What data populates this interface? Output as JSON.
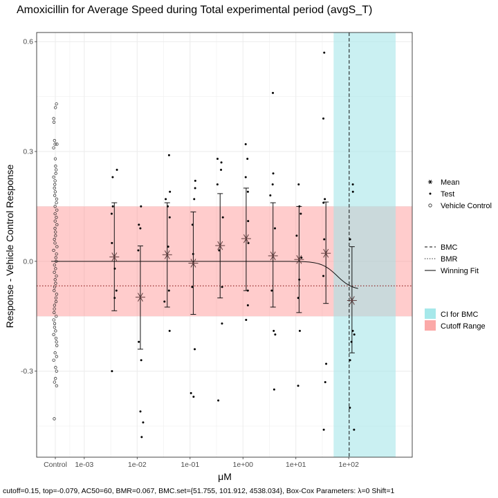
{
  "chart_data": {
    "type": "scatter",
    "title": "Amoxicillin for Average Speed during Total experimental period (avgS_T)",
    "xlabel": "μM",
    "ylabel": "Response - Vehicle Control Response",
    "caption": "cutoff=0.15, top=-0.079, AC50=60, BMR=0.067, BMC.set={51.755, 101.912, 4538.034}, Box-Cox Parameters: λ=0 Shift=1",
    "x_scale": "log10",
    "x_ticks": [
      {
        "label": "Control",
        "value": null
      },
      {
        "label": "1e-03",
        "value": 0.001
      },
      {
        "label": "1e-02",
        "value": 0.01
      },
      {
        "label": "1e-01",
        "value": 0.1
      },
      {
        "label": "1e+00",
        "value": 1
      },
      {
        "label": "1e+01",
        "value": 10
      },
      {
        "label": "1e+02",
        "value": 100
      }
    ],
    "y_ticks": [
      {
        "label": "-0.3",
        "value": -0.3
      },
      {
        "label": "0.0",
        "value": 0.0
      },
      {
        "label": "0.3",
        "value": 0.3
      },
      {
        "label": "0.6",
        "value": 0.6
      }
    ],
    "ylim": [
      -0.535,
      0.625
    ],
    "xlim_log10": [
      -3.9,
      3.2
    ],
    "grid": true,
    "cutoff_range": [
      -0.15,
      0.15
    ],
    "bmr_line": -0.067,
    "bmc": 101.912,
    "ci_for_bmc": [
      51.755,
      4538.034
    ],
    "winning_fit": {
      "form": "hill",
      "top": -0.079,
      "ac50": 60,
      "bottom": 0,
      "n": 3
    },
    "series": [
      {
        "name": "Mean",
        "points": [
          {
            "x": 0.0037,
            "y": 0.012,
            "lo": -0.135,
            "hi": 0.16
          },
          {
            "x": 0.0115,
            "y": -0.098,
            "lo": -0.24,
            "hi": 0.042
          },
          {
            "x": 0.037,
            "y": 0.018,
            "lo": -0.125,
            "hi": 0.16
          },
          {
            "x": 0.115,
            "y": -0.005,
            "lo": -0.145,
            "hi": 0.135
          },
          {
            "x": 0.37,
            "y": 0.043,
            "lo": -0.1,
            "hi": 0.185
          },
          {
            "x": 1.15,
            "y": 0.062,
            "lo": -0.08,
            "hi": 0.2
          },
          {
            "x": 3.7,
            "y": 0.015,
            "lo": -0.125,
            "hi": 0.16
          },
          {
            "x": 11.5,
            "y": 0.005,
            "lo": -0.14,
            "hi": 0.15
          },
          {
            "x": 37,
            "y": 0.022,
            "lo": -0.115,
            "hi": 0.162
          },
          {
            "x": 115,
            "y": -0.107,
            "lo": -0.25,
            "hi": 0.04
          }
        ]
      },
      {
        "name": "Test",
        "points": [
          {
            "x": 0.0037,
            "y": 0.25
          },
          {
            "x": 0.0037,
            "y": 0.23
          },
          {
            "x": 0.0037,
            "y": 0.15
          },
          {
            "x": 0.0037,
            "y": 0.13
          },
          {
            "x": 0.0037,
            "y": 0.05
          },
          {
            "x": 0.0037,
            "y": -0.02
          },
          {
            "x": 0.0037,
            "y": -0.08
          },
          {
            "x": 0.0037,
            "y": -0.1
          },
          {
            "x": 0.0037,
            "y": -0.3
          },
          {
            "x": 0.0115,
            "y": 0.15
          },
          {
            "x": 0.0115,
            "y": 0.1
          },
          {
            "x": 0.0115,
            "y": 0.09
          },
          {
            "x": 0.0115,
            "y": 0.03
          },
          {
            "x": 0.0115,
            "y": -0.22
          },
          {
            "x": 0.0115,
            "y": -0.27
          },
          {
            "x": 0.0115,
            "y": -0.41
          },
          {
            "x": 0.0115,
            "y": -0.44
          },
          {
            "x": 0.0115,
            "y": -0.48
          },
          {
            "x": 0.037,
            "y": 0.29
          },
          {
            "x": 0.037,
            "y": 0.19
          },
          {
            "x": 0.037,
            "y": 0.17
          },
          {
            "x": 0.037,
            "y": 0.15
          },
          {
            "x": 0.037,
            "y": 0.12
          },
          {
            "x": 0.037,
            "y": 0.04
          },
          {
            "x": 0.037,
            "y": -0.08
          },
          {
            "x": 0.037,
            "y": -0.11
          },
          {
            "x": 0.037,
            "y": -0.19
          },
          {
            "x": 0.115,
            "y": 0.22
          },
          {
            "x": 0.115,
            "y": 0.2
          },
          {
            "x": 0.115,
            "y": 0.17
          },
          {
            "x": 0.115,
            "y": 0.1
          },
          {
            "x": 0.115,
            "y": 0.02
          },
          {
            "x": 0.115,
            "y": -0.07
          },
          {
            "x": 0.115,
            "y": -0.24
          },
          {
            "x": 0.115,
            "y": -0.36
          },
          {
            "x": 0.115,
            "y": -0.37
          },
          {
            "x": 0.37,
            "y": 0.28
          },
          {
            "x": 0.37,
            "y": 0.27
          },
          {
            "x": 0.37,
            "y": 0.25
          },
          {
            "x": 0.37,
            "y": 0.21
          },
          {
            "x": 0.37,
            "y": 0.12
          },
          {
            "x": 0.37,
            "y": 0.03
          },
          {
            "x": 0.37,
            "y": -0.07
          },
          {
            "x": 0.37,
            "y": -0.17
          },
          {
            "x": 0.37,
            "y": -0.38
          },
          {
            "x": 1.15,
            "y": 0.32
          },
          {
            "x": 1.15,
            "y": 0.28
          },
          {
            "x": 1.15,
            "y": 0.23
          },
          {
            "x": 1.15,
            "y": 0.19
          },
          {
            "x": 1.15,
            "y": 0.11
          },
          {
            "x": 1.15,
            "y": 0.05
          },
          {
            "x": 1.15,
            "y": -0.08
          },
          {
            "x": 1.15,
            "y": -0.12
          },
          {
            "x": 1.15,
            "y": -0.16
          },
          {
            "x": 3.7,
            "y": 0.46
          },
          {
            "x": 3.7,
            "y": 0.24
          },
          {
            "x": 3.7,
            "y": 0.21
          },
          {
            "x": 3.7,
            "y": 0.18
          },
          {
            "x": 3.7,
            "y": 0.09
          },
          {
            "x": 3.7,
            "y": -0.08
          },
          {
            "x": 3.7,
            "y": -0.19
          },
          {
            "x": 3.7,
            "y": -0.2
          },
          {
            "x": 3.7,
            "y": -0.35
          },
          {
            "x": 11.5,
            "y": 0.21
          },
          {
            "x": 11.5,
            "y": 0.15
          },
          {
            "x": 11.5,
            "y": 0.13
          },
          {
            "x": 11.5,
            "y": 0.07
          },
          {
            "x": 11.5,
            "y": 0.01
          },
          {
            "x": 11.5,
            "y": -0.05
          },
          {
            "x": 11.5,
            "y": -0.1
          },
          {
            "x": 11.5,
            "y": -0.19
          },
          {
            "x": 11.5,
            "y": -0.34
          },
          {
            "x": 37,
            "y": 0.57
          },
          {
            "x": 37,
            "y": 0.39
          },
          {
            "x": 37,
            "y": 0.17
          },
          {
            "x": 37,
            "y": 0.16
          },
          {
            "x": 37,
            "y": 0.06
          },
          {
            "x": 37,
            "y": -0.04
          },
          {
            "x": 37,
            "y": -0.28
          },
          {
            "x": 37,
            "y": -0.33
          },
          {
            "x": 37,
            "y": -0.46
          },
          {
            "x": 115,
            "y": 0.21
          },
          {
            "x": 115,
            "y": 0.19
          },
          {
            "x": 115,
            "y": 0.06
          },
          {
            "x": 115,
            "y": -0.19
          },
          {
            "x": 115,
            "y": -0.2
          },
          {
            "x": 115,
            "y": -0.22
          },
          {
            "x": 115,
            "y": -0.27
          },
          {
            "x": 115,
            "y": -0.4
          },
          {
            "x": 115,
            "y": -0.46
          }
        ]
      },
      {
        "name": "Vehicle Control",
        "x": "Control",
        "values": [
          0.43,
          0.42,
          0.39,
          0.38,
          0.33,
          0.32,
          0.32,
          0.31,
          0.28,
          0.26,
          0.25,
          0.24,
          0.23,
          0.22,
          0.21,
          0.2,
          0.19,
          0.18,
          0.17,
          0.16,
          0.15,
          0.14,
          0.13,
          0.12,
          0.11,
          0.1,
          0.09,
          0.08,
          0.07,
          0.06,
          0.05,
          0.04,
          0.03,
          0.02,
          0.01,
          0.0,
          -0.01,
          -0.02,
          -0.03,
          -0.04,
          -0.05,
          -0.06,
          -0.07,
          -0.08,
          -0.09,
          -0.1,
          -0.11,
          -0.12,
          -0.13,
          -0.14,
          -0.15,
          -0.16,
          -0.17,
          -0.18,
          -0.19,
          -0.2,
          -0.21,
          -0.22,
          -0.23,
          -0.25,
          -0.26,
          -0.27,
          -0.29,
          -0.3,
          -0.32,
          -0.33,
          -0.34,
          -0.43
        ]
      }
    ],
    "legend": {
      "points": [
        {
          "symbol": "asterisk",
          "label": "Mean"
        },
        {
          "symbol": "dot",
          "label": "Test"
        },
        {
          "symbol": "circle",
          "label": "Vehicle Control"
        }
      ],
      "lines": [
        {
          "dash": "dashed",
          "label": "BMC"
        },
        {
          "dash": "dotted",
          "label": "BMR"
        },
        {
          "dash": "solid",
          "label": "Winning Fit"
        }
      ],
      "fills": [
        {
          "color": "#a6e8ea",
          "label": "CI for BMC"
        },
        {
          "color": "#fba9a8",
          "label": "Cutoff Range"
        }
      ]
    },
    "colors": {
      "cutoff_fill": "#ff7f7f",
      "ci_fill": "#9fe4e8",
      "grid": "#ebebeb",
      "panel_border": "#333333"
    }
  }
}
